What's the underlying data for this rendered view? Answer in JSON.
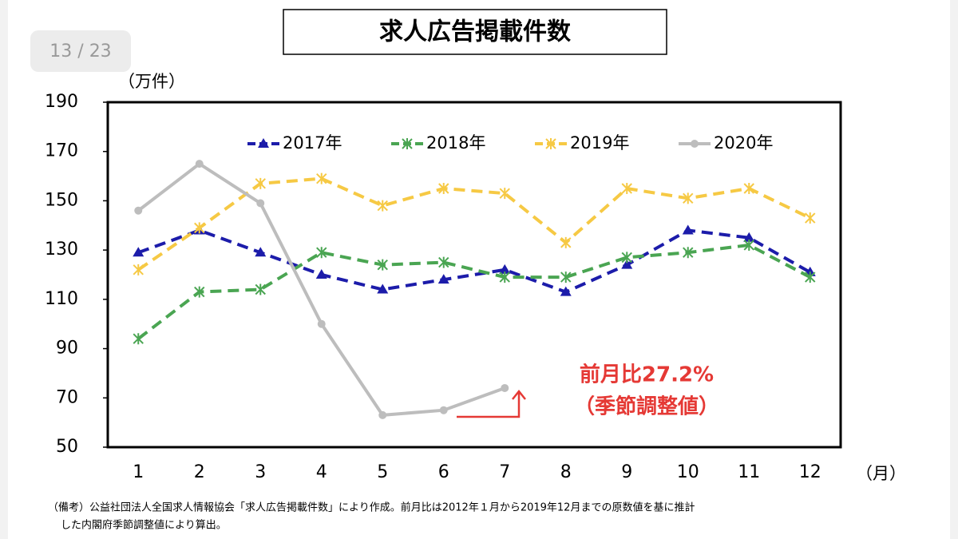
{
  "page_counter": "13 / 23",
  "chart_data": {
    "type": "line",
    "title": "求人広告掲載件数",
    "y_label": "（万件）",
    "x_label": "（月）",
    "categories": [
      "1",
      "2",
      "3",
      "4",
      "5",
      "6",
      "7",
      "8",
      "9",
      "10",
      "11",
      "12"
    ],
    "series": [
      {
        "name": "2017年",
        "color": "#1c1caa",
        "marker": "triangle",
        "dashed": true,
        "values": [
          129,
          138,
          129,
          120,
          114,
          118,
          122,
          113,
          124,
          138,
          135,
          121
        ]
      },
      {
        "name": "2018年",
        "color": "#4aa552",
        "marker": "cross",
        "dashed": true,
        "values": [
          94,
          113,
          114,
          129,
          124,
          125,
          119,
          119,
          127,
          129,
          132,
          119
        ]
      },
      {
        "name": "2019年",
        "color": "#f6c944",
        "marker": "cross",
        "dashed": true,
        "values": [
          122,
          139,
          157,
          159,
          148,
          155,
          153,
          133,
          155,
          151,
          155,
          143
        ]
      },
      {
        "name": "2020年",
        "color": "#bdbdbd",
        "marker": "circle",
        "dashed": false,
        "values": [
          146,
          165,
          149,
          100,
          63,
          65,
          74,
          null,
          null,
          null,
          null,
          null
        ]
      }
    ],
    "ylim": [
      50,
      190
    ],
    "yticks": [
      50,
      70,
      90,
      110,
      130,
      150,
      170,
      190
    ],
    "grid": false,
    "annotation": [
      "前月比27.2%",
      "（季節調整値）"
    ],
    "notes": [
      "（備考）公益社団法人全国求人情報協会「求人広告掲載件数」により作成。前月比は2012年１月から2019年12月までの原数値を基に推計",
      "した内閣府季節調整値により算出。"
    ]
  }
}
